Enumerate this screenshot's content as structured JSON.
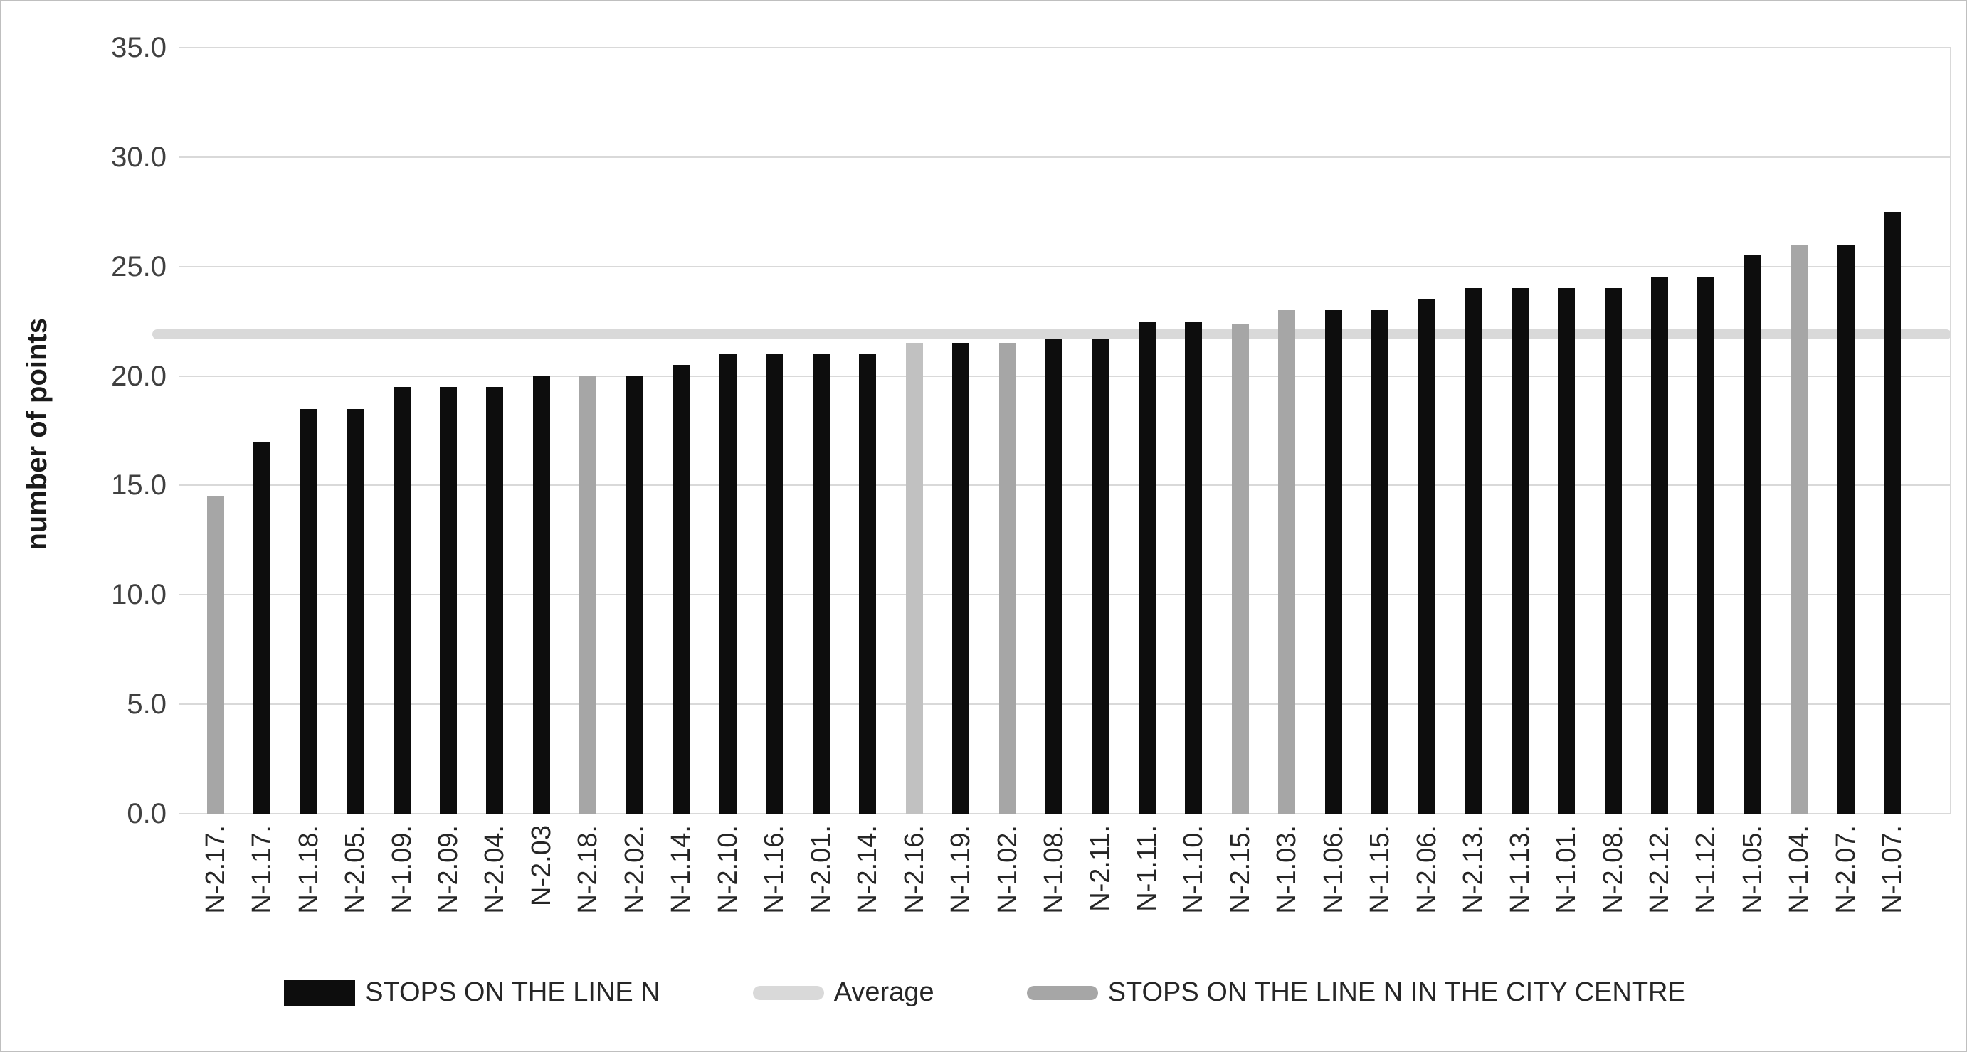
{
  "chart_data": {
    "type": "bar",
    "title": "",
    "xlabel": "",
    "ylabel": "number of points",
    "ylim": [
      0,
      35
    ],
    "ytick_step": 5,
    "ytick_labels": [
      "0.0",
      "5.0",
      "10.0",
      "15.0",
      "20.0",
      "25.0",
      "30.0",
      "35.0"
    ],
    "grid": true,
    "legend_position": "bottom",
    "average_value": 21.9,
    "categories": [
      "N-2.17.",
      "N-1.17.",
      "N-1.18.",
      "N-2.05.",
      "N-1.09.",
      "N-2.09.",
      "N-2.04.",
      "N-2.03",
      "N-2.18.",
      "N-2.02.",
      "N-1.14.",
      "N-2.10.",
      "N-1.16.",
      "N-2.01.",
      "N-2.14.",
      "N-2.16.",
      "N-1.19.",
      "N-1.02.",
      "N-1.08.",
      "N-2.11.",
      "N-1.11.",
      "N-1.10.",
      "N-2.15.",
      "N-1.03.",
      "N-1.06.",
      "N-1.15.",
      "N-2.06.",
      "N-2.13.",
      "N-1.13.",
      "N-1.01.",
      "N-2.08.",
      "N-2.12.",
      "N-1.12.",
      "N-1.05.",
      "N-1.04.",
      "N-2.07.",
      "N-1.07."
    ],
    "values": [
      14.5,
      17.0,
      18.5,
      18.5,
      19.5,
      19.5,
      19.5,
      20.0,
      20.0,
      20.0,
      20.5,
      21.0,
      21.0,
      21.0,
      21.0,
      21.5,
      21.5,
      21.5,
      21.7,
      21.7,
      22.5,
      22.5,
      22.4,
      23.0,
      23.0,
      23.0,
      23.5,
      24.0,
      24.0,
      24.0,
      24.0,
      24.5,
      24.5,
      25.5,
      26.0,
      26.0,
      27.5
    ],
    "bar_colors": [
      "gray",
      "black",
      "black",
      "black",
      "black",
      "black",
      "black",
      "black",
      "gray",
      "black",
      "black",
      "black",
      "black",
      "black",
      "black",
      "lightgray",
      "black",
      "gray",
      "black",
      "black",
      "black",
      "black",
      "gray",
      "gray",
      "black",
      "black",
      "black",
      "black",
      "black",
      "black",
      "black",
      "black",
      "black",
      "black",
      "gray",
      "black",
      "black"
    ],
    "colors": {
      "black": "#0d0d0d",
      "gray": "#a6a6a6",
      "lightgray": "#c1c1c1",
      "average_line": "#d9d9d9",
      "gridline": "#d9d9d9",
      "axis_text": "#404040"
    },
    "legend": [
      {
        "label": "STOPS ON THE LINE N",
        "swatch": "bar",
        "color": "#0d0d0d"
      },
      {
        "label": "Average",
        "swatch": "line",
        "color": "#d9d9d9"
      },
      {
        "label": "STOPS ON THE LINE N IN THE CITY CENTRE",
        "swatch": "line",
        "color": "#a6a6a6"
      }
    ]
  }
}
